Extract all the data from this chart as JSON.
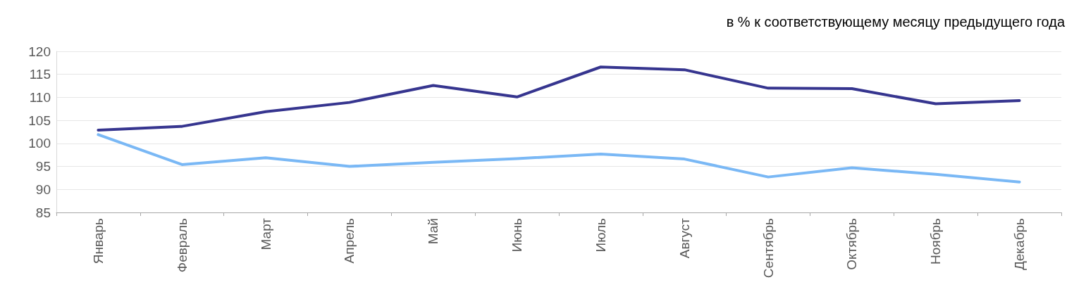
{
  "chart_data": {
    "type": "line",
    "title": "в % к соответствующему месяцу предыдущего года",
    "categories": [
      "Январь",
      "Февраль",
      "Март",
      "Апрель",
      "Май",
      "Июнь",
      "Июль",
      "Август",
      "Сентябрь",
      "Октябрь",
      "Ноябрь",
      "Декабрь"
    ],
    "series": [
      {
        "color": "#36358f",
        "values": [
          102.9,
          103.7,
          106.9,
          108.9,
          112.6,
          110.1,
          116.6,
          116.0,
          112.0,
          111.9,
          108.6,
          109.3
        ]
      },
      {
        "color": "#7ab8f5",
        "values": [
          101.9,
          95.4,
          96.9,
          95.0,
          95.9,
          96.7,
          97.7,
          96.6,
          92.7,
          94.7,
          93.3,
          91.6
        ]
      }
    ],
    "ylim": [
      85,
      120
    ],
    "yticks": [
      85,
      90,
      95,
      100,
      105,
      110,
      115,
      120
    ],
    "grid": "y",
    "marker": "none",
    "line_style": "solid"
  }
}
